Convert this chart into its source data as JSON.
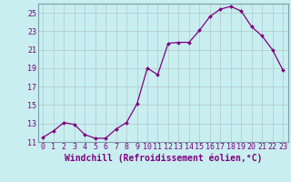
{
  "x": [
    0,
    1,
    2,
    3,
    4,
    5,
    6,
    7,
    8,
    9,
    10,
    11,
    12,
    13,
    14,
    15,
    16,
    17,
    18,
    19,
    20,
    21,
    22,
    23
  ],
  "y": [
    11.5,
    12.2,
    13.1,
    12.9,
    11.8,
    11.4,
    11.4,
    12.4,
    13.1,
    15.1,
    19.0,
    18.3,
    21.7,
    21.8,
    21.8,
    23.1,
    24.6,
    25.4,
    25.7,
    25.2,
    23.5,
    22.5,
    21.0,
    18.8
  ],
  "line_color": "#800080",
  "marker_color": "#800080",
  "bg_color": "#c8eef0",
  "grid_color": "#b0c8cc",
  "xlabel": "Windchill (Refroidissement éolien,°C)",
  "ylim": [
    11,
    26
  ],
  "yticks": [
    11,
    13,
    15,
    17,
    19,
    21,
    23,
    25
  ],
  "xlim": [
    -0.5,
    23.5
  ],
  "xticks": [
    0,
    1,
    2,
    3,
    4,
    5,
    6,
    7,
    8,
    9,
    10,
    11,
    12,
    13,
    14,
    15,
    16,
    17,
    18,
    19,
    20,
    21,
    22,
    23
  ],
  "font_color": "#800080",
  "tick_font_size": 6,
  "label_font_size": 7
}
